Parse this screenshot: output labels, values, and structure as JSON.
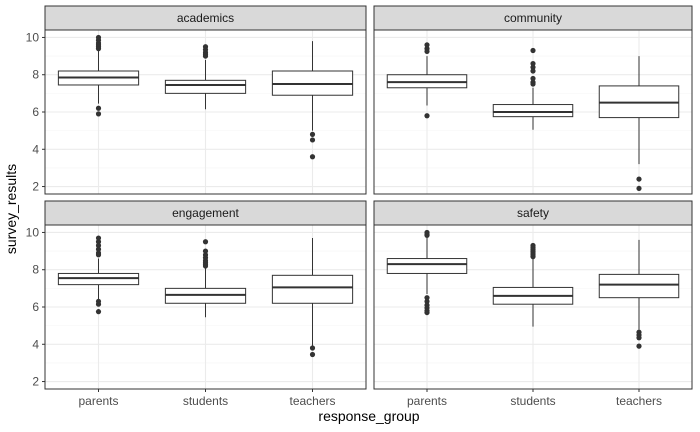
{
  "chart_data": {
    "type": "boxplot",
    "xlabel": "response_group",
    "ylabel": "survey_results",
    "categories": [
      "parents",
      "students",
      "teachers"
    ],
    "ylim": [
      1.6,
      10.4
    ],
    "y_ticks": [
      2,
      4,
      6,
      8,
      10
    ],
    "grid": true,
    "facets": [
      {
        "name": "academics",
        "boxes": [
          {
            "category": "parents",
            "whisker_low": 6.45,
            "q1": 7.45,
            "median": 7.85,
            "q3": 8.2,
            "whisker_high": 9.3,
            "outliers": [
              10.0,
              9.85,
              9.7,
              9.6,
              9.5,
              9.4,
              6.2,
              5.9
            ]
          },
          {
            "category": "students",
            "whisker_low": 6.15,
            "q1": 7.0,
            "median": 7.45,
            "q3": 7.7,
            "whisker_high": 8.8,
            "outliers": [
              9.5,
              9.35,
              9.2,
              9.1,
              9.0
            ]
          },
          {
            "category": "teachers",
            "whisker_low": 5.0,
            "q1": 6.9,
            "median": 7.5,
            "q3": 8.2,
            "whisker_high": 9.8,
            "outliers": [
              4.8,
              4.5,
              3.6
            ]
          }
        ]
      },
      {
        "name": "community",
        "boxes": [
          {
            "category": "parents",
            "whisker_low": 6.35,
            "q1": 7.3,
            "median": 7.6,
            "q3": 8.0,
            "whisker_high": 9.0,
            "outliers": [
              9.6,
              9.4,
              9.25,
              5.8
            ]
          },
          {
            "category": "students",
            "whisker_low": 5.05,
            "q1": 5.75,
            "median": 6.0,
            "q3": 6.4,
            "whisker_high": 7.3,
            "outliers": [
              9.3,
              8.6,
              8.4,
              8.2,
              7.8,
              7.6,
              7.5
            ]
          },
          {
            "category": "teachers",
            "whisker_low": 3.2,
            "q1": 5.7,
            "median": 6.5,
            "q3": 7.4,
            "whisker_high": 9.0,
            "outliers": [
              2.4,
              1.9
            ]
          }
        ]
      },
      {
        "name": "engagement",
        "boxes": [
          {
            "category": "parents",
            "whisker_low": 6.4,
            "q1": 7.2,
            "median": 7.55,
            "q3": 7.8,
            "whisker_high": 8.6,
            "outliers": [
              9.7,
              9.5,
              9.3,
              9.1,
              8.9,
              8.8,
              6.3,
              6.15,
              5.75
            ]
          },
          {
            "category": "students",
            "whisker_low": 5.45,
            "q1": 6.2,
            "median": 6.65,
            "q3": 7.0,
            "whisker_high": 8.1,
            "outliers": [
              9.5,
              9.0,
              8.8,
              8.65,
              8.5,
              8.4,
              8.3,
              8.2
            ]
          },
          {
            "category": "teachers",
            "whisker_low": 3.9,
            "q1": 6.2,
            "median": 7.05,
            "q3": 7.7,
            "whisker_high": 9.7,
            "outliers": [
              3.8,
              3.45
            ]
          }
        ]
      },
      {
        "name": "safety",
        "boxes": [
          {
            "category": "parents",
            "whisker_low": 6.7,
            "q1": 7.8,
            "median": 8.3,
            "q3": 8.6,
            "whisker_high": 9.75,
            "outliers": [
              10.0,
              9.9,
              9.85,
              6.5,
              6.3,
              6.1,
              5.95,
              5.8,
              5.7
            ]
          },
          {
            "category": "students",
            "whisker_low": 4.95,
            "q1": 6.15,
            "median": 6.6,
            "q3": 7.05,
            "whisker_high": 8.6,
            "outliers": [
              9.3,
              9.2,
              9.1,
              9.0,
              8.9,
              8.8,
              8.7
            ]
          },
          {
            "category": "teachers",
            "whisker_low": 4.8,
            "q1": 6.5,
            "median": 7.2,
            "q3": 7.75,
            "whisker_high": 9.6,
            "outliers": [
              4.65,
              4.5,
              4.35,
              3.9
            ]
          }
        ]
      }
    ]
  },
  "colors": {
    "panel_border": "#333333",
    "strip_fill": "#d9d9d9",
    "grid_major": "#ebebeb",
    "grid_minor": "#f5f5f5",
    "box_line": "#333333",
    "box_fill": "#ffffff",
    "point": "#333333",
    "tick_text": "#4d4d4d"
  }
}
